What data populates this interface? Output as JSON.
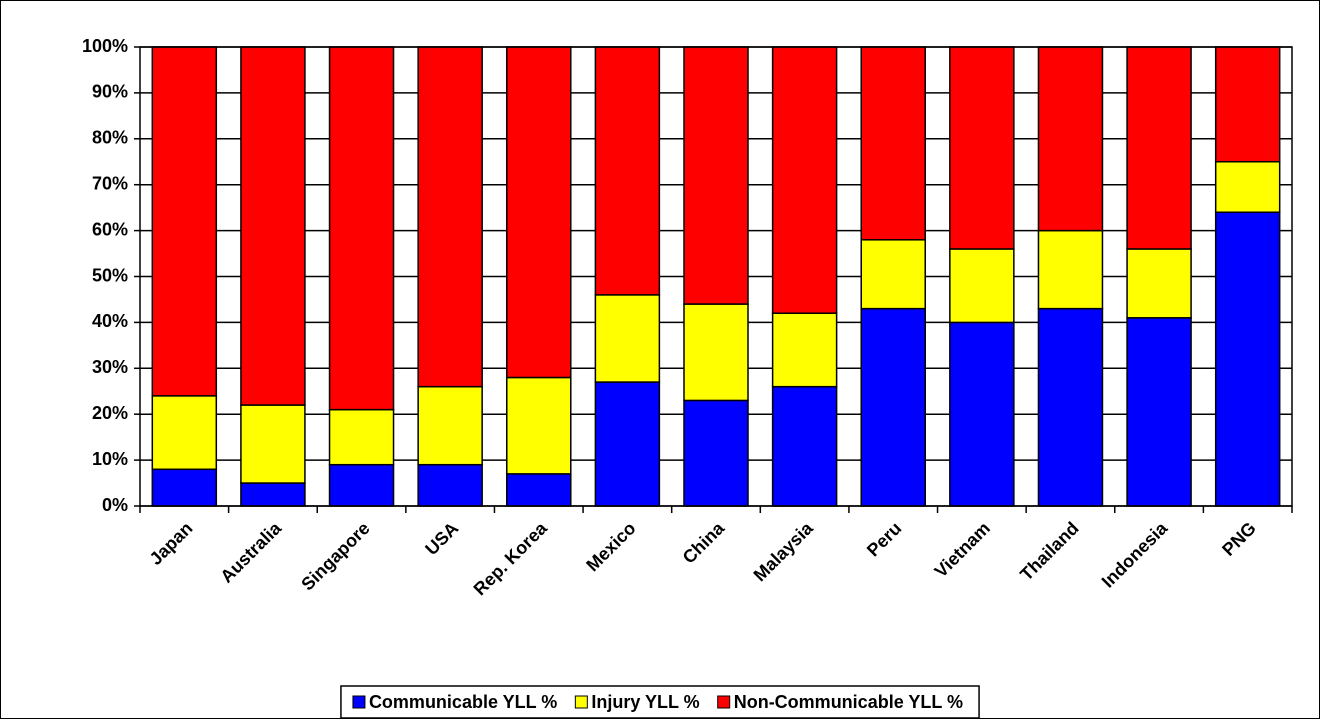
{
  "chart_data": {
    "type": "stacked_bar",
    "categories": [
      "Japan",
      "Australia",
      "Singapore",
      "USA",
      "Rep. Korea",
      "Mexico",
      "China",
      "Malaysia",
      "Peru",
      "Vietnam",
      "Thailand",
      "Indonesia",
      "PNG"
    ],
    "series": [
      {
        "name": "Communicable YLL %",
        "color": "#0000ff",
        "values": [
          8,
          5,
          9,
          9,
          7,
          27,
          23,
          26,
          43,
          40,
          43,
          41,
          64
        ]
      },
      {
        "name": "Injury YLL %",
        "color": "#ffff00",
        "values": [
          16,
          17,
          12,
          17,
          21,
          19,
          21,
          16,
          15,
          16,
          17,
          15,
          11
        ]
      },
      {
        "name": "Non-Communicable YLL %",
        "color": "#ff0000",
        "values": [
          76,
          78,
          79,
          74,
          72,
          54,
          56,
          58,
          42,
          44,
          40,
          44,
          25
        ]
      }
    ],
    "ylim": [
      0,
      100
    ],
    "yticks": [
      {
        "value": 0,
        "label": "0%"
      },
      {
        "value": 10,
        "label": "10%"
      },
      {
        "value": 20,
        "label": "20%"
      },
      {
        "value": 30,
        "label": "30%"
      },
      {
        "value": 40,
        "label": "40%"
      },
      {
        "value": 50,
        "label": "50%"
      },
      {
        "value": 60,
        "label": "60%"
      },
      {
        "value": 70,
        "label": "70%"
      },
      {
        "value": 80,
        "label": "80%"
      },
      {
        "value": 90,
        "label": "90%"
      },
      {
        "value": 100,
        "label": "100%"
      }
    ],
    "grid": true,
    "legend": "bottom"
  }
}
